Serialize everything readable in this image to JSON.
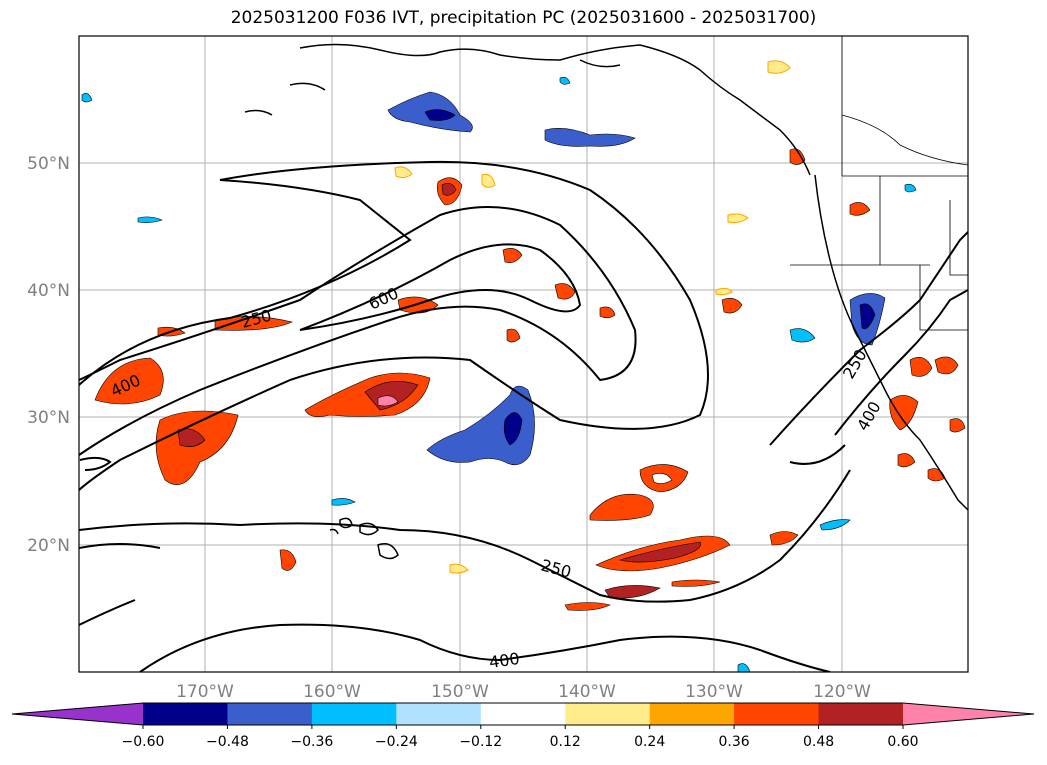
{
  "title": "2025031200 F036 IVT, precipitation PC (2025031600 - 2025031700)",
  "map": {
    "lat_labels": [
      "50°N",
      "40°N",
      "30°N",
      "20°N"
    ],
    "lon_labels": [
      "170°W",
      "160°W",
      "150°W",
      "140°W",
      "130°W",
      "120°W"
    ],
    "contour_labels": [
      "250",
      "600",
      "400",
      "250",
      "400",
      "250",
      "400"
    ],
    "gridlines": true
  },
  "colorbar": {
    "colors": [
      "#9932CC",
      "#00008B",
      "#3A5FCD",
      "#00BFFF",
      "#B0E2FF",
      "#FFFFFF",
      "#FFEC8B",
      "#FFA500",
      "#FF4500",
      "#B22222",
      "#FF82AB"
    ],
    "ticks": [
      "−0.60",
      "−0.48",
      "−0.36",
      "−0.24",
      "−0.12",
      "0.12",
      "0.24",
      "0.36",
      "0.48",
      "0.60"
    ]
  }
}
